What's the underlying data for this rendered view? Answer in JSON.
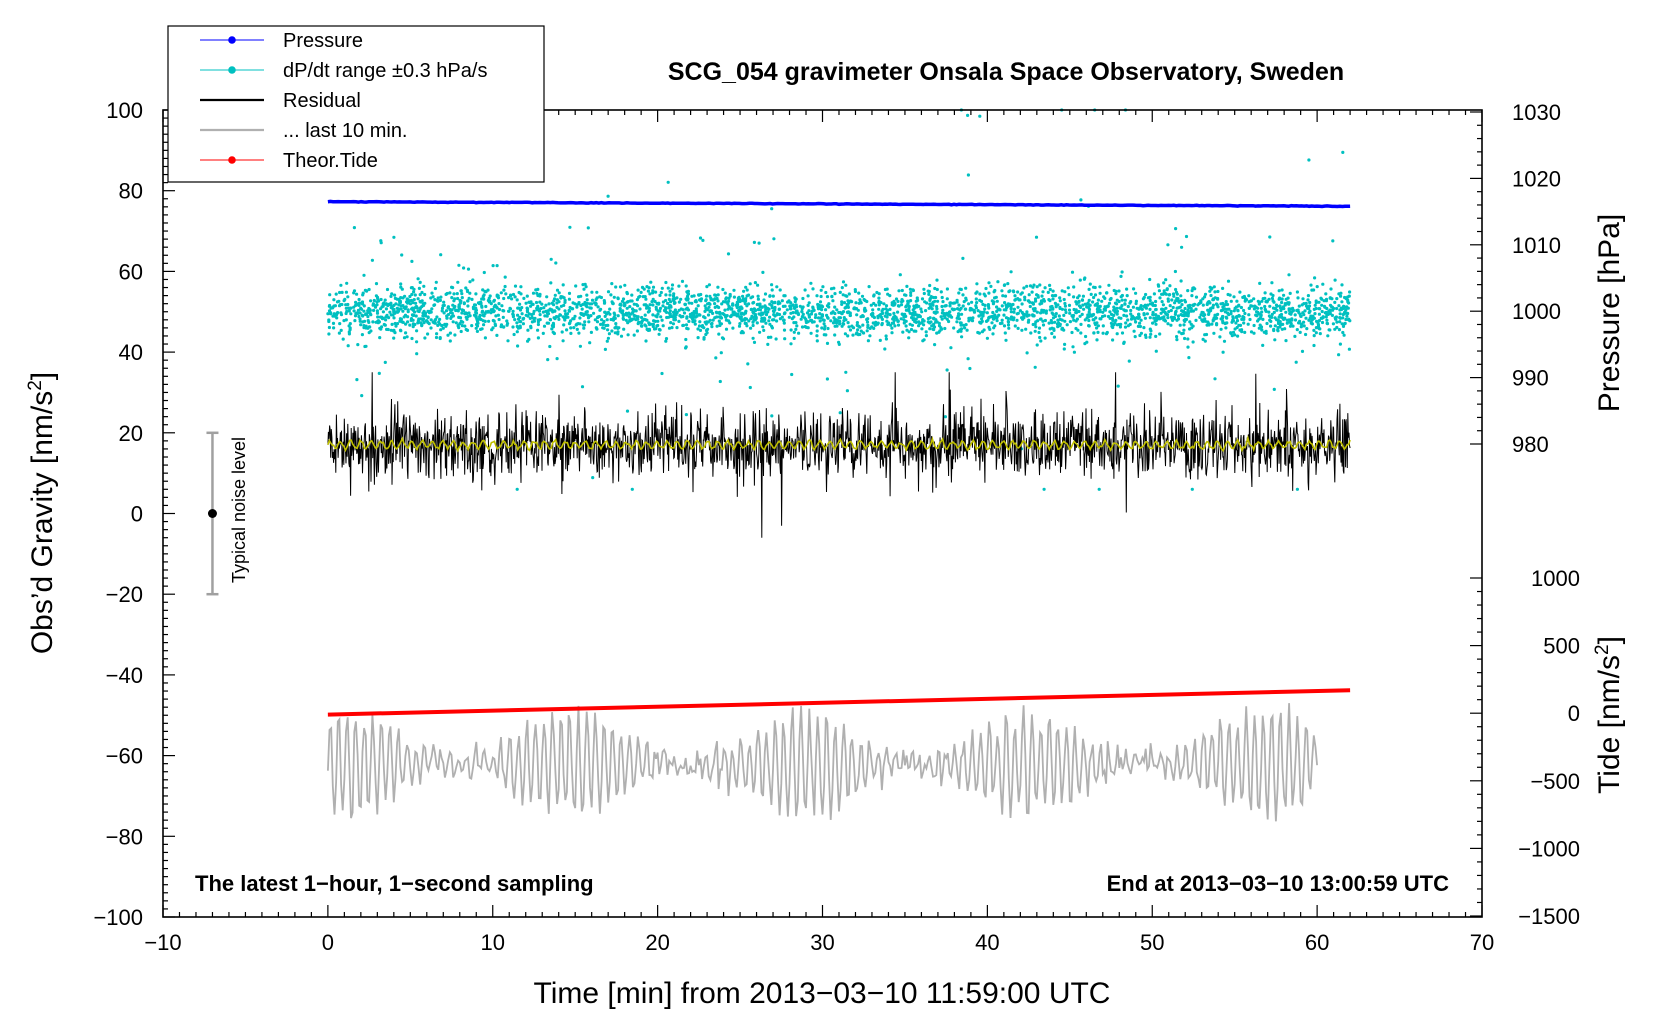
{
  "chart_data": {
    "type": "line",
    "title": "SCG_054 gravimeter Onsala Space Observatory, Sweden",
    "xlabel": "Time [min] from 2013−03−10 11:59:00 UTC",
    "ylabel_left": "Obs’d Gravity [nm/s",
    "ylabel_left_sup": "2",
    "ylabel_left_end": "]",
    "ylabel_right_top": "Pressure [hPa]",
    "ylabel_right_bottom": "Tide [nm/s",
    "ylabel_right_bottom_sup": "2",
    "ylabel_right_bottom_end": "]",
    "xlim": [
      -10,
      70
    ],
    "ylim_left": [
      -100,
      100
    ],
    "ylim_pressure": [
      970,
      1030
    ],
    "ylim_tide": [
      -1500,
      1500
    ],
    "x_ticks": [
      -10,
      0,
      10,
      20,
      30,
      40,
      50,
      60,
      70
    ],
    "x_tick_labels": [
      "−10",
      "0",
      "10",
      "20",
      "30",
      "40",
      "50",
      "60",
      "70"
    ],
    "y_left_ticks": [
      -100,
      -80,
      -60,
      -40,
      -20,
      0,
      20,
      40,
      60,
      80,
      100
    ],
    "y_left_tick_labels": [
      "−100",
      "−80",
      "−60",
      "−40",
      "−20",
      "0",
      "20",
      "40",
      "60",
      "80",
      "100"
    ],
    "y_pressure_ticks": [
      980,
      990,
      1000,
      1010,
      1020,
      1030
    ],
    "y_pressure_tick_labels": [
      "980",
      "990",
      "1000",
      "1010",
      "1020",
      "1030"
    ],
    "y_tide_ticks": [
      -1500,
      -1000,
      -500,
      0,
      500,
      1000
    ],
    "y_tide_tick_labels": [
      "−1500",
      "−1000",
      "−500",
      "0",
      "500",
      "1000"
    ],
    "legend": [
      {
        "label": "Pressure",
        "color": "#0000ff",
        "marker": true
      },
      {
        "label": "dP/dt range ±0.3 hPa/s",
        "color": "#00c0c0",
        "marker": true
      },
      {
        "label": "Residual",
        "color": "#000000",
        "marker": false
      },
      {
        "label": "... last 10 min.",
        "color": "#b0b0b0",
        "marker": false
      },
      {
        "label": "Theor.Tide",
        "color": "#ff0000",
        "marker": true
      }
    ],
    "legend_position": "top-left",
    "annotation_left": "The latest 1−hour, 1−second sampling",
    "annotation_right": "End at 2013−03−10 13:00:59 UTC",
    "noise_label": "Typical noise level",
    "noise_level": {
      "x": -7,
      "center": 0,
      "low": -20,
      "high": 20
    },
    "series": [
      {
        "name": "Pressure",
        "axis": "pressure",
        "color": "#0000ff",
        "x_range": [
          0,
          62
        ],
        "start": 1016.5,
        "end": 1015.8
      },
      {
        "name": "dP/dt range ±0.3 hPa/s",
        "axis": "left",
        "color": "#00c0c0",
        "x_range": [
          0,
          62
        ],
        "center": 50,
        "spread": 8,
        "outlier_max": 100,
        "outlier_min": 6
      },
      {
        "name": "Residual",
        "axis": "left",
        "color": "#000000",
        "x_range": [
          0,
          62
        ],
        "center": 17,
        "amplitude": 10,
        "min": -6,
        "max": 35
      },
      {
        "name": "Residual (smoothed)",
        "axis": "left",
        "color": "#c0c000",
        "x_range": [
          0,
          62
        ],
        "center": 17
      },
      {
        "name": "... last 10 min.",
        "axis": "left",
        "color": "#b0b0b0",
        "x_range": [
          0,
          60
        ],
        "center": -62,
        "min": -77,
        "max": -47
      },
      {
        "name": "Theor.Tide",
        "axis": "tide",
        "color": "#ff0000",
        "x_range": [
          0,
          62
        ],
        "start": -10,
        "end": 170
      }
    ],
    "colors": {
      "frame": "#000000",
      "noise_bar": "#a0a0a0",
      "noise_dot": "#000000"
    }
  }
}
